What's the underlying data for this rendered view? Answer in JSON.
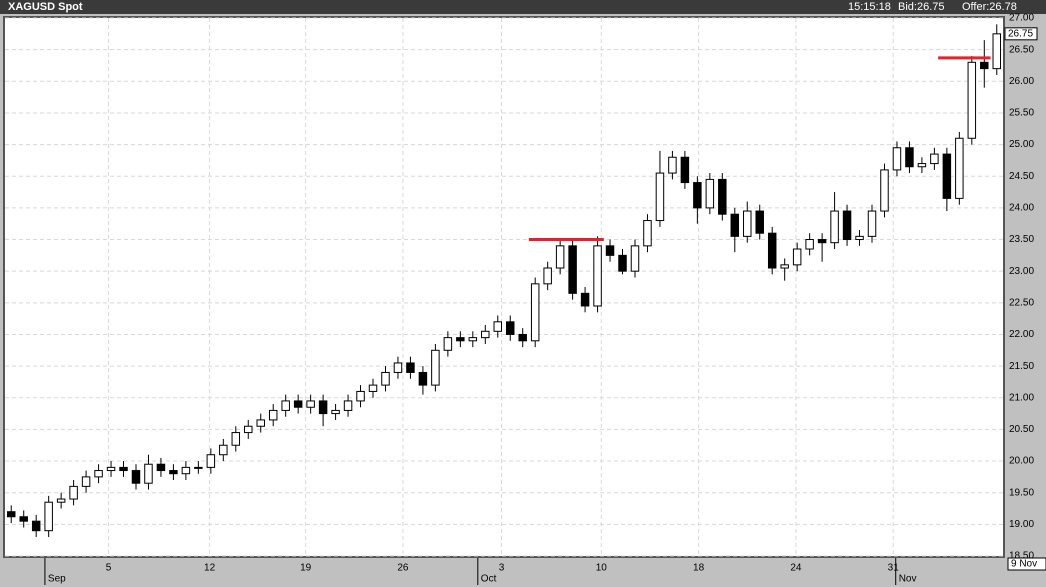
{
  "chart_data": {
    "type": "candlestick",
    "title": "XAGUSD Spot",
    "time": "15:15:18",
    "bid": "Bid:26.75",
    "offer": "Offer:26.78",
    "last_price": 26.75,
    "cursor_date": "9 Nov",
    "x": [
      0,
      1,
      2,
      3,
      4,
      5,
      6,
      7,
      8,
      9,
      10,
      11,
      12,
      13,
      14,
      15,
      16,
      17,
      18,
      19,
      20,
      21,
      22,
      23,
      24,
      25,
      26,
      27,
      28,
      29,
      30,
      31,
      32,
      33,
      34,
      35,
      36,
      37,
      38,
      39,
      40,
      41,
      42,
      43,
      44,
      45,
      46,
      47,
      48,
      49,
      50,
      51,
      52,
      53,
      54,
      55,
      56,
      57,
      58,
      59,
      60,
      61,
      62,
      63,
      64,
      65,
      66,
      67,
      68,
      69,
      70,
      71,
      72,
      73,
      74,
      75,
      76,
      77,
      78,
      79
    ],
    "open": [
      19.2,
      19.12,
      19.05,
      18.9,
      19.35,
      19.4,
      19.6,
      19.75,
      19.85,
      19.9,
      19.85,
      19.65,
      19.95,
      19.85,
      19.8,
      19.9,
      19.9,
      20.1,
      20.25,
      20.45,
      20.55,
      20.65,
      20.8,
      20.95,
      20.85,
      20.95,
      20.75,
      20.8,
      20.95,
      21.1,
      21.2,
      21.4,
      21.55,
      21.4,
      21.2,
      21.75,
      21.95,
      21.9,
      21.95,
      22.05,
      22.2,
      22.0,
      21.9,
      22.8,
      23.05,
      23.4,
      22.65,
      22.45,
      23.4,
      23.25,
      23.0,
      23.4,
      23.8,
      24.55,
      24.8,
      24.4,
      24.0,
      24.45,
      23.9,
      23.55,
      23.95,
      23.6,
      23.05,
      23.1,
      23.35,
      23.5,
      23.45,
      23.95,
      23.5,
      23.55,
      23.95,
      24.6,
      24.95,
      24.65,
      24.7,
      24.85,
      24.15,
      25.1,
      26.3,
      26.2
    ],
    "high": [
      19.3,
      19.22,
      19.15,
      19.45,
      19.5,
      19.7,
      19.85,
      19.95,
      20.0,
      20.0,
      19.95,
      20.1,
      20.05,
      19.95,
      20.0,
      20.0,
      20.2,
      20.35,
      20.55,
      20.65,
      20.75,
      20.9,
      21.05,
      21.05,
      21.05,
      21.05,
      20.9,
      21.05,
      21.2,
      21.3,
      21.5,
      21.65,
      21.65,
      21.5,
      21.85,
      22.05,
      22.05,
      22.05,
      22.15,
      22.3,
      22.3,
      22.1,
      22.9,
      23.15,
      23.5,
      23.5,
      22.75,
      23.55,
      23.5,
      23.35,
      23.5,
      23.9,
      24.9,
      24.9,
      24.9,
      24.5,
      24.55,
      24.55,
      24.0,
      24.1,
      24.05,
      23.7,
      23.2,
      23.45,
      23.6,
      23.6,
      24.25,
      24.05,
      23.65,
      24.05,
      24.7,
      25.05,
      25.05,
      24.8,
      24.95,
      24.95,
      25.2,
      26.4,
      26.65,
      26.9
    ],
    "low": [
      19.02,
      18.95,
      18.8,
      18.8,
      19.25,
      19.3,
      19.5,
      19.65,
      19.75,
      19.75,
      19.55,
      19.55,
      19.75,
      19.7,
      19.7,
      19.8,
      19.8,
      20.0,
      20.15,
      20.35,
      20.45,
      20.55,
      20.7,
      20.75,
      20.75,
      20.55,
      20.65,
      20.7,
      20.85,
      21.0,
      21.1,
      21.3,
      21.3,
      21.05,
      21.1,
      21.65,
      21.8,
      21.8,
      21.85,
      21.95,
      21.9,
      21.8,
      21.8,
      22.7,
      22.95,
      22.55,
      22.35,
      22.35,
      23.15,
      22.95,
      22.9,
      23.3,
      23.7,
      24.45,
      24.3,
      23.75,
      23.9,
      23.8,
      23.3,
      23.45,
      23.5,
      22.95,
      22.85,
      23.0,
      23.25,
      23.15,
      23.35,
      23.4,
      23.4,
      23.45,
      23.85,
      24.5,
      24.55,
      24.55,
      24.6,
      23.95,
      24.05,
      25.0,
      25.9,
      26.1
    ],
    "close": [
      19.12,
      19.05,
      18.9,
      19.35,
      19.4,
      19.6,
      19.75,
      19.85,
      19.9,
      19.85,
      19.65,
      19.95,
      19.85,
      19.8,
      19.9,
      19.9,
      20.1,
      20.25,
      20.45,
      20.55,
      20.65,
      20.8,
      20.95,
      20.85,
      20.95,
      20.75,
      20.8,
      20.95,
      21.1,
      21.2,
      21.4,
      21.55,
      21.4,
      21.2,
      21.75,
      21.95,
      21.9,
      21.95,
      22.05,
      22.2,
      22.0,
      21.9,
      22.8,
      23.05,
      23.4,
      22.65,
      22.45,
      23.4,
      23.25,
      23.0,
      23.4,
      23.8,
      24.55,
      24.8,
      24.4,
      24.0,
      24.45,
      23.9,
      23.55,
      23.95,
      23.6,
      23.05,
      23.1,
      23.35,
      23.5,
      23.45,
      23.95,
      23.5,
      23.55,
      23.95,
      24.6,
      24.95,
      24.65,
      24.7,
      24.85,
      24.15,
      25.1,
      26.3,
      26.2,
      26.75
    ],
    "up_color": "#ffffff",
    "down_color": "#000000",
    "lines": [
      {
        "y": 23.5,
        "x": [
          41.5,
          47.5
        ],
        "color": "#e8202a"
      },
      {
        "y": 26.37,
        "x": [
          74.3,
          78.5
        ],
        "color": "#e8202a"
      }
    ],
    "xlim": [
      -0.5,
      79.5
    ],
    "ylim": [
      18.5,
      27.0
    ],
    "xticks": [
      {
        "value": 7.8,
        "label": "5"
      },
      {
        "value": 15.9,
        "label": "12"
      },
      {
        "value": 23.6,
        "label": "19"
      },
      {
        "value": 31.4,
        "label": "26"
      },
      {
        "value": 39.3,
        "label": "3"
      },
      {
        "value": 47.3,
        "label": "10"
      },
      {
        "value": 55.1,
        "label": "18"
      },
      {
        "value": 62.9,
        "label": "24"
      },
      {
        "value": 70.7,
        "label": "31"
      }
    ],
    "month_ticks": [
      {
        "value": 2.7,
        "label": "Sep"
      },
      {
        "value": 37.4,
        "label": "Oct"
      },
      {
        "value": 70.9,
        "label": "Nov"
      }
    ],
    "yticks": [
      {
        "value": 18.5,
        "label": "18.50"
      },
      {
        "value": 19.0,
        "label": "19.00"
      },
      {
        "value": 19.5,
        "label": "19.50"
      },
      {
        "value": 20.0,
        "label": "20.00"
      },
      {
        "value": 20.5,
        "label": "20.50"
      },
      {
        "value": 21.0,
        "label": "21.00"
      },
      {
        "value": 21.5,
        "label": "21.50"
      },
      {
        "value": 22.0,
        "label": "22.00"
      },
      {
        "value": 22.5,
        "label": "22.50"
      },
      {
        "value": 23.0,
        "label": "23.00"
      },
      {
        "value": 23.5,
        "label": "23.50"
      },
      {
        "value": 24.0,
        "label": "24.00"
      },
      {
        "value": 24.5,
        "label": "24.50"
      },
      {
        "value": 25.0,
        "label": "25.00"
      },
      {
        "value": 25.5,
        "label": "25.50"
      },
      {
        "value": 26.0,
        "label": "26.00"
      },
      {
        "value": 26.5,
        "label": "26.50"
      },
      {
        "value": 27.0,
        "label": "27.00"
      }
    ],
    "grid": true
  }
}
